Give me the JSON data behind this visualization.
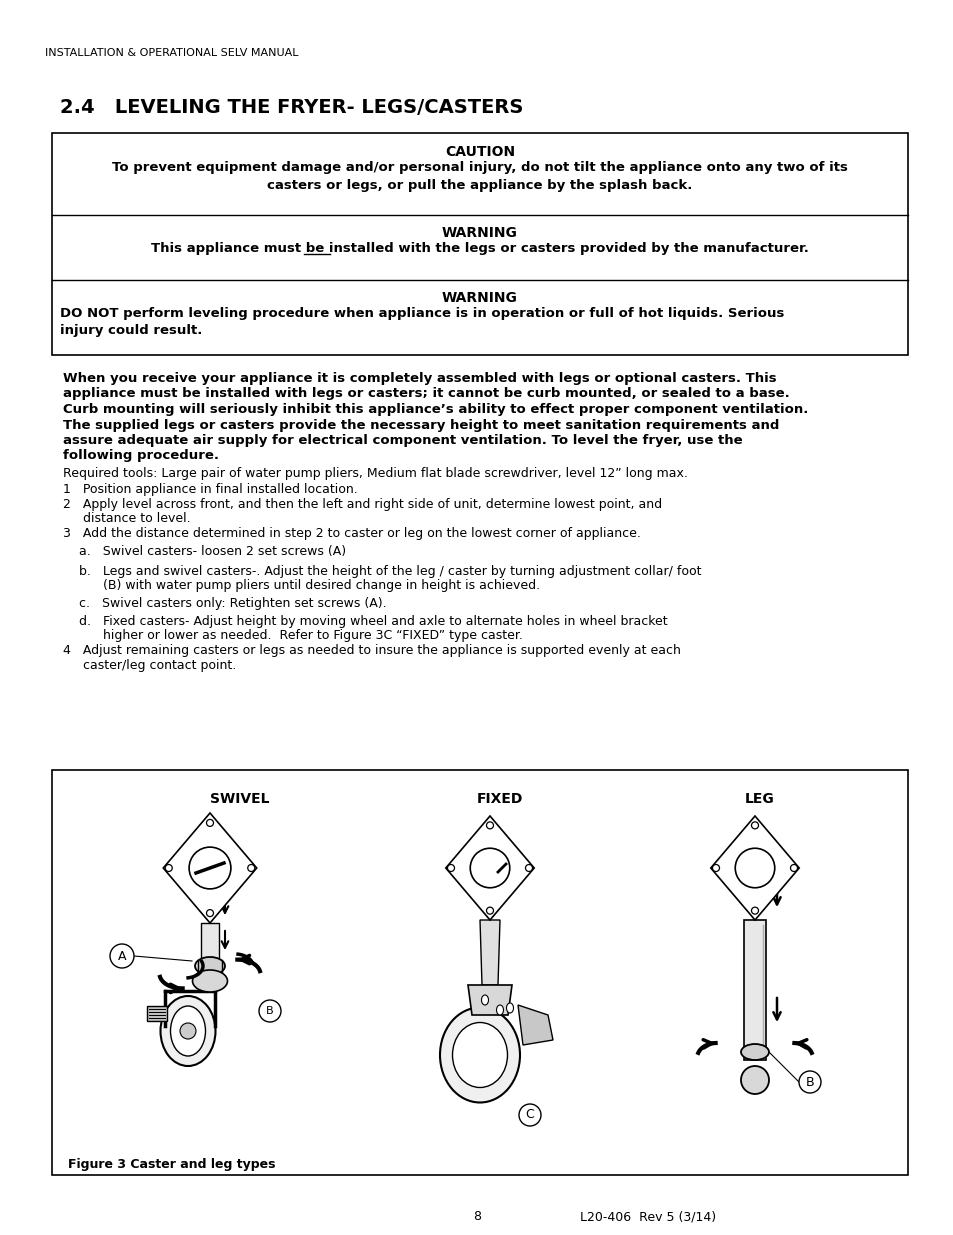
{
  "page_header": "INSTALLATION & OPERATIONAL SELV MANUAL",
  "section_title": "2.4   LEVELING THE FRYER- LEGS/CASTERS",
  "caution_title": "CAUTION",
  "caution_line1": "To prevent equipment damage and/or personal injury, do not tilt the appliance onto any two of its",
  "caution_line2": "casters or legs, or pull the appliance by the splash back.",
  "warning1_title": "WARNING",
  "warning1_text": "This appliance ̲m̲u̲s̲t be installed with the legs or casters provided by the manufacturer.",
  "warning2_title": "WARNING",
  "warning2_line1": "DO NOT perform leveling procedure when appliance is in operation or full of hot liquids. Serious",
  "warning2_line2": "injury could result.",
  "body_line1": "When you receive your appliance it is completely assembled with legs or optional casters. This",
  "body_line2": "appliance must be installed with legs or casters; it cannot be curb mounted, or sealed to a base.",
  "body_line3": "Curb mounting will seriously inhibit this appliance’s ability to effect proper component ventilation.",
  "body_line4": "The supplied legs or casters provide the necessary height to meet sanitation requirements and",
  "body_line5": "assure adequate air supply for electrical component ventilation. To level the fryer, use the",
  "body_line6": "following procedure.",
  "required_tools": "Required tools: Large pair of water pump pliers, Medium flat blade screwdriver, level 12” long max.",
  "step1": "1   Position appliance in final installed location.",
  "step2a": "2   Apply level across front, and then the left and right side of unit, determine lowest point, and",
  "step2b": "     distance to level.",
  "step3": "3   Add the distance determined in step 2 to caster or leg on the lowest corner of appliance.",
  "step_a": "    a.   Swivel casters- loosen 2 set screws (A)",
  "step_b1": "    b.   Legs and swivel casters-. Adjust the height of the leg / caster by turning adjustment collar/ foot",
  "step_b2": "          (B) with water pump pliers until desired change in height is achieved.",
  "step_c": "    c.   Swivel casters only: Retighten set screws (A).",
  "step_d1": "    d.   Fixed casters- Adjust height by moving wheel and axle to alternate holes in wheel bracket",
  "step_d2": "          higher or lower as needed.  Refer to Figure 3C “FIXED” type caster.",
  "step4a": "4   Adjust remaining casters or legs as needed to insure the appliance is supported evenly at each",
  "step4b": "     caster/leg contact point.",
  "figure_caption": "Figure 3 Caster and leg types",
  "swivel_label": "SWIVEL",
  "fixed_label": "FIXED",
  "leg_label": "LEG",
  "page_number": "8",
  "doc_ref": "L20-406  Rev 5 (3/14)",
  "bg_color": "#ffffff",
  "text_color": "#000000",
  "border_color": "#000000"
}
